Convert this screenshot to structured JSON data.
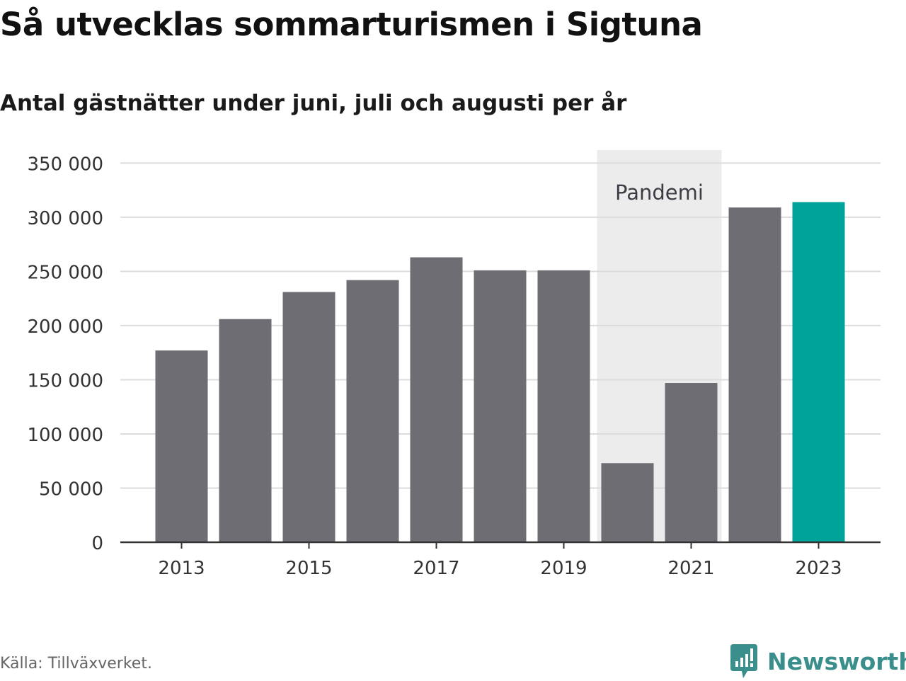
{
  "chart_data": {
    "type": "bar",
    "title": "Så utvecklas sommarturismen i Sigtuna",
    "subtitle": "Antal gästnätter under juni, juli och augusti per år",
    "categories": [
      "2013",
      "2014",
      "2015",
      "2016",
      "2017",
      "2018",
      "2019",
      "2020",
      "2021",
      "2022",
      "2023"
    ],
    "values": [
      177000,
      206000,
      231000,
      242000,
      263000,
      251000,
      251000,
      73000,
      147000,
      309000,
      314000
    ],
    "xtick_labels": [
      "2013",
      "2015",
      "2017",
      "2019",
      "2021",
      "2023"
    ],
    "yticks": [
      0,
      50000,
      100000,
      150000,
      200000,
      250000,
      300000,
      350000
    ],
    "ytick_labels": [
      "0",
      "50 000",
      "100 000",
      "150 000",
      "200 000",
      "250 000",
      "300 000",
      "350 000"
    ],
    "ylim": [
      0,
      362000
    ],
    "xlabel": "",
    "ylabel": "",
    "grid": true,
    "highlight_category": "2023",
    "colors": {
      "bar": "#6e6d73",
      "highlight": "#00a39a",
      "gridline": "#dcdcdc",
      "axis": "#333333",
      "pandemic_band": "#ececec"
    },
    "annotations": [
      {
        "label": "Pandemi",
        "from": "2020",
        "to": "2021",
        "kind": "shaded-band"
      }
    ]
  },
  "footer": {
    "source": "Källa: Tillväxverket.",
    "brand": "Newsworthy",
    "brand_icon": "newsworthy-chart-bubble-icon",
    "brand_color": "#3a8f8c"
  }
}
